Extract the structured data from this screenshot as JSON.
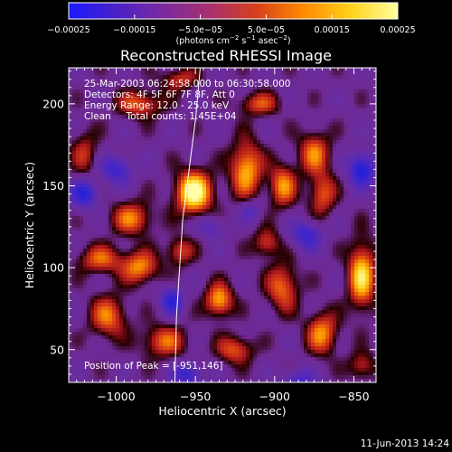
{
  "chart_data": {
    "type": "heatmap",
    "title": "Reconstructed RHESSI Image",
    "info_lines": [
      "25-Mar-2003 06:24:58.000 to 06:30:58.000",
      "Detectors: 4F 5F 6F 7F 8F, Att 0",
      "Energy Range: 12.0 - 25.0 keV",
      "Clean     Total counts: 1.45E+04"
    ],
    "peak_label": "Position of Peak = [-951,146]",
    "xlabel": "Heliocentric X (arcsec)",
    "ylabel": "Heliocentric Y (arcsec)",
    "xlim": [
      -1030,
      -836
    ],
    "ylim": [
      30,
      222
    ],
    "x_ticks": [
      {
        "value": -1000,
        "label": "−1000"
      },
      {
        "value": -950,
        "label": "−950"
      },
      {
        "value": -900,
        "label": "−900"
      },
      {
        "value": -850,
        "label": "−850"
      }
    ],
    "y_ticks": [
      {
        "value": 50,
        "label": "50"
      },
      {
        "value": 100,
        "label": "100"
      },
      {
        "value": 150,
        "label": "150"
      },
      {
        "value": 200,
        "label": "200"
      }
    ],
    "colorbar": {
      "range": [
        -0.00025,
        0.00025
      ],
      "tick_labels": [
        "−0.00025",
        "−0.00015",
        "−5.0e−05",
        "5.0e−05",
        "0.00015",
        "0.00025"
      ],
      "tick_values": [
        -0.00025,
        -0.00015,
        -5e-05,
        5e-05,
        0.00015,
        0.00025
      ],
      "units_main": "(photons cm",
      "units_sup1": "−2",
      "units_mid": " s",
      "units_sup2": "−1",
      "units_mid2": " asec",
      "units_sup3": "−2",
      "units_end": ")",
      "colors": [
        "#1a1aff",
        "#4a20c8",
        "#7a2aa0",
        "#a83070",
        "#d8401a",
        "#ff8a00",
        "#ffd21a",
        "#ffffa0"
      ]
    },
    "peak": {
      "x": -951,
      "y": 146
    },
    "blobs": [
      {
        "x": -951,
        "y": 146,
        "sx": 8,
        "sy": 9,
        "a": 1.0
      },
      {
        "x": -918,
        "y": 160,
        "sx": 7,
        "sy": 12,
        "a": 0.7
      },
      {
        "x": -895,
        "y": 150,
        "sx": 6,
        "sy": 9,
        "a": 0.6
      },
      {
        "x": -875,
        "y": 170,
        "sx": 7,
        "sy": 9,
        "a": 0.55
      },
      {
        "x": -870,
        "y": 145,
        "sx": 6,
        "sy": 9,
        "a": 0.5
      },
      {
        "x": -990,
        "y": 130,
        "sx": 9,
        "sy": 7,
        "a": 0.55
      },
      {
        "x": -1010,
        "y": 105,
        "sx": 10,
        "sy": 6,
        "a": 0.5
      },
      {
        "x": -985,
        "y": 100,
        "sx": 8,
        "sy": 7,
        "a": 0.6
      },
      {
        "x": -960,
        "y": 110,
        "sx": 6,
        "sy": 6,
        "a": 0.45
      },
      {
        "x": -1005,
        "y": 70,
        "sx": 8,
        "sy": 9,
        "a": 0.55
      },
      {
        "x": -970,
        "y": 55,
        "sx": 10,
        "sy": 7,
        "a": 0.5
      },
      {
        "x": -935,
        "y": 80,
        "sx": 6,
        "sy": 7,
        "a": 0.7
      },
      {
        "x": -925,
        "y": 50,
        "sx": 8,
        "sy": 6,
        "a": 0.5
      },
      {
        "x": -895,
        "y": 88,
        "sx": 7,
        "sy": 10,
        "a": 0.55
      },
      {
        "x": -905,
        "y": 115,
        "sx": 6,
        "sy": 6,
        "a": 0.45
      },
      {
        "x": -870,
        "y": 60,
        "sx": 7,
        "sy": 9,
        "a": 0.6
      },
      {
        "x": -845,
        "y": 95,
        "sx": 6,
        "sy": 14,
        "a": 0.8
      },
      {
        "x": -845,
        "y": 40,
        "sx": 6,
        "sy": 6,
        "a": 0.4
      },
      {
        "x": -985,
        "y": 200,
        "sx": 10,
        "sy": 6,
        "a": 0.5
      },
      {
        "x": -960,
        "y": 215,
        "sx": 8,
        "sy": 5,
        "a": 0.4
      },
      {
        "x": -910,
        "y": 200,
        "sx": 9,
        "sy": 5,
        "a": 0.45
      },
      {
        "x": -1020,
        "y": 170,
        "sx": 6,
        "sy": 10,
        "a": 0.35
      },
      {
        "x": -1000,
        "y": 160,
        "sx": 7,
        "sy": 6,
        "a": -0.5
      },
      {
        "x": -1020,
        "y": 145,
        "sx": 6,
        "sy": 6,
        "a": -0.6
      },
      {
        "x": -940,
        "y": 125,
        "sx": 6,
        "sy": 5,
        "a": -0.3
      },
      {
        "x": -965,
        "y": 80,
        "sx": 5,
        "sy": 6,
        "a": -0.55
      },
      {
        "x": -955,
        "y": 35,
        "sx": 6,
        "sy": 5,
        "a": -0.55
      },
      {
        "x": -880,
        "y": 120,
        "sx": 7,
        "sy": 6,
        "a": -0.5
      },
      {
        "x": -845,
        "y": 160,
        "sx": 6,
        "sy": 7,
        "a": -0.7
      },
      {
        "x": -885,
        "y": 30,
        "sx": 7,
        "sy": 6,
        "a": -0.45
      },
      {
        "x": -915,
        "y": 135,
        "sx": 5,
        "sy": 5,
        "a": -0.3
      }
    ],
    "limb_curve": [
      [
        -947,
        222
      ],
      [
        -950,
        190
      ],
      [
        -954,
        160
      ],
      [
        -958,
        130
      ],
      [
        -960,
        100
      ],
      [
        -962,
        70
      ],
      [
        -963,
        30
      ]
    ],
    "timestamp": "11-Jun-2013 14:24"
  }
}
